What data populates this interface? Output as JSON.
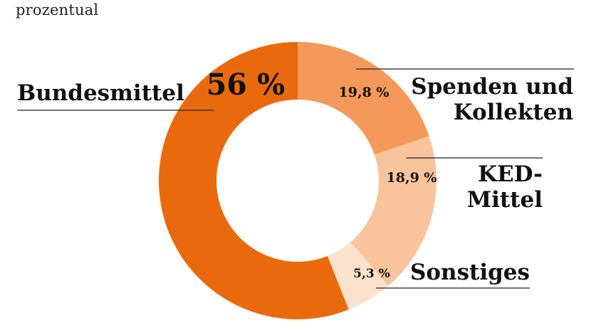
{
  "subtitle": "prozentual",
  "chart_data": {
    "type": "pie",
    "variant": "donut",
    "unit": "%",
    "start_angle_deg": 0,
    "direction": "clockwise",
    "series": [
      {
        "name": "Spenden und Kollekten",
        "label_lines": [
          "Spenden und",
          "Kollekten"
        ],
        "value": 19.8,
        "value_label": "19,8 %",
        "color": "#F4995A"
      },
      {
        "name": "KED-Mittel",
        "label_lines": [
          "KED-",
          "Mittel"
        ],
        "value": 18.9,
        "value_label": "18,9 %",
        "color": "#F9C49B"
      },
      {
        "name": "Sonstiges",
        "label_lines": [
          "Sonstiges"
        ],
        "value": 5.3,
        "value_label": "5,3 %",
        "color": "#FCE2CC"
      },
      {
        "name": "Bundesmittel",
        "label_lines": [
          "Bundesmittel"
        ],
        "value": 56,
        "value_label": "56 %",
        "color": "#E96A0D"
      }
    ]
  }
}
